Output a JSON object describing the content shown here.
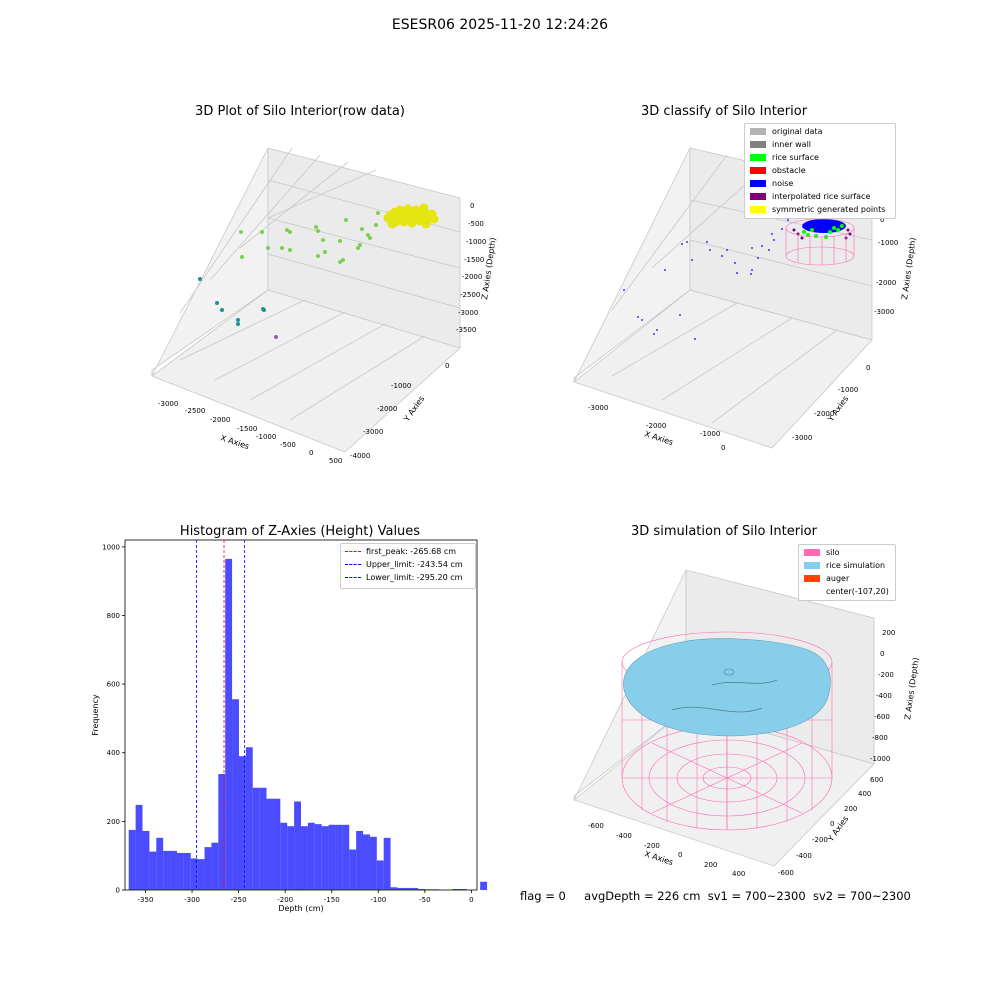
{
  "figure": {
    "suptitle": "ESESR06 2025-11-20 12:24:26",
    "footer": {
      "flag": "flag = 0",
      "avg_depth": "avgDepth = 226 cm",
      "sv1": "sv1 = 700~2300",
      "sv2": "sv2 = 700~2300"
    }
  },
  "chart_data": [
    {
      "type": "scatter",
      "title": "3D Plot of Silo Interior(row data)",
      "xlabel": "X Axies",
      "ylabel": "Y Axies",
      "zlabel": "Z Axies (Depth)",
      "x_ticks": [
        "-3000",
        "-2500",
        "-2000",
        "-1500",
        "-1000",
        "-500",
        "0",
        "500"
      ],
      "y_ticks": [
        "0",
        "-1000",
        "-2000",
        "-3000",
        "-4000"
      ],
      "z_ticks": [
        "0",
        "-500",
        "-1000",
        "-1500",
        "-2000",
        "-2500",
        "-3000",
        "-3500"
      ],
      "colormap": "viridis-like by depth",
      "colors": {
        "shallow": "#e5e512",
        "mid": "#7ad151",
        "deep": "#21918c",
        "deepest": "#9b59b6"
      }
    },
    {
      "type": "scatter",
      "title": "3D classify of Silo Interior",
      "xlabel": "X Axies",
      "ylabel": "Y Axies",
      "zlabel": "Z Axies (Depth)",
      "x_ticks": [
        "-3000",
        "-2000",
        "-1000",
        "0"
      ],
      "y_ticks": [
        "0",
        "-1000",
        "-2000",
        "-3000"
      ],
      "z_ticks": [
        "0",
        "-1000",
        "-2000",
        "-3000"
      ],
      "legend": [
        {
          "label": "original data",
          "color": "#b3b3b3"
        },
        {
          "label": "inner wall",
          "color": "#808080"
        },
        {
          "label": "rice surface",
          "color": "#00ff00"
        },
        {
          "label": "obstacle",
          "color": "#ff0000"
        },
        {
          "label": "noise",
          "color": "#0000ff"
        },
        {
          "label": "interpolated rice surface",
          "color": "#800080"
        },
        {
          "label": "symmetric generated points",
          "color": "#ffff00"
        }
      ]
    },
    {
      "type": "bar",
      "title": "Histogram of Z-Axies (Height) Values",
      "xlabel": "Depth (cm)",
      "ylabel": "Frequency",
      "xlim": [
        -372,
        6
      ],
      "ylim": [
        0,
        1020
      ],
      "x_ticks": [
        -350,
        -300,
        -250,
        -200,
        -150,
        -100,
        -50,
        0
      ],
      "y_ticks": [
        0,
        200,
        400,
        600,
        800,
        1000
      ],
      "bar_color": "#0000ff",
      "bin_start": -368,
      "bin_width": 7.4,
      "values": [
        175,
        248,
        172,
        112,
        152,
        114,
        114,
        108,
        108,
        92,
        90,
        125,
        138,
        338,
        965,
        556,
        390,
        416,
        298,
        298,
        266,
        266,
        196,
        186,
        258,
        186,
        196,
        192,
        186,
        190,
        190,
        190,
        118,
        172,
        162,
        155,
        86,
        152,
        8,
        6,
        6,
        6,
        3,
        2,
        2,
        0,
        1,
        3,
        3,
        0,
        0,
        24
      ],
      "lines": [
        {
          "label": "first_peak: -265.68 cm",
          "x": -265.68,
          "color": "#ff0000"
        },
        {
          "label": "Upper_limit: -243.54 cm",
          "x": -243.54,
          "color": "#0000ff"
        },
        {
          "label": "Lower_limit: -295.20 cm",
          "x": -295.2,
          "color": "#0000ff"
        }
      ]
    },
    {
      "type": "other",
      "title": "3D simulation of Silo Interior",
      "xlabel": "X Axies",
      "ylabel": "Y Axies",
      "zlabel": "Z Axies (Depth)",
      "x_ticks": [
        "-600",
        "-400",
        "-200",
        "0",
        "200",
        "400"
      ],
      "y_ticks": [
        "600",
        "400",
        "200",
        "0",
        "-200",
        "-400",
        "-600"
      ],
      "z_ticks": [
        "200",
        "0",
        "-200",
        "-400",
        "-600",
        "-800",
        "-1000"
      ],
      "legend": [
        {
          "label": "silo",
          "color": "#ff69b4"
        },
        {
          "label": "rice simulation",
          "color": "#87ceeb"
        },
        {
          "label": "auger",
          "color": "#ff4500"
        },
        {
          "label": "center(-107,20)",
          "color": ""
        }
      ]
    }
  ]
}
